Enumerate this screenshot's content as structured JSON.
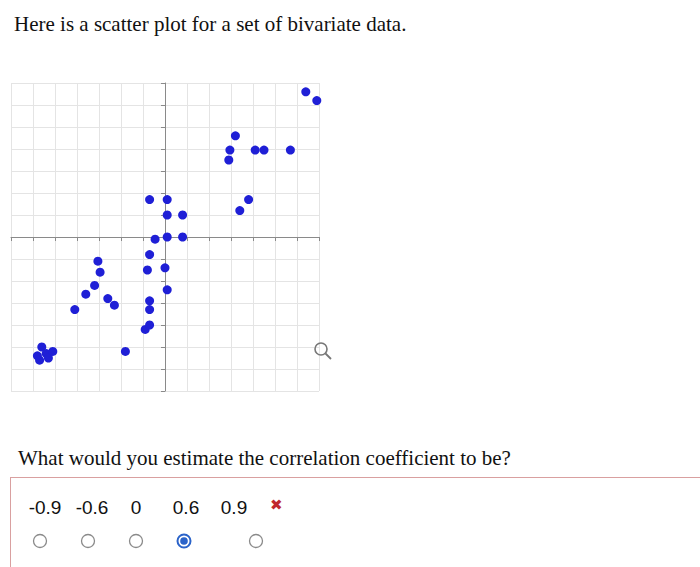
{
  "intro": "Here is a scatter plot for a set of bivariate data.",
  "chart_data": {
    "type": "scatter",
    "x": [
      -5.6,
      -5.4,
      -5.7,
      -5.3,
      -5.8,
      -5.1,
      -4.1,
      -3.6,
      -3.2,
      -2.95,
      -3.05,
      -2.6,
      -2.3,
      -1.8,
      -0.9,
      -0.7,
      -0.7,
      -0.7,
      -0.8,
      -0.7,
      -0.45,
      -0.7,
      0.1,
      0.1,
      0.1,
      0.8,
      0.8,
      0.0,
      0.1,
      3.2,
      2.95,
      2.9,
      3.4,
      3.8,
      4.1,
      4.5,
      5.7,
      6.4,
      6.9
    ],
    "y": [
      -5.0,
      -5.3,
      -5.6,
      -5.5,
      -5.4,
      -5.2,
      -3.3,
      -2.6,
      -2.2,
      -1.6,
      -1.1,
      -2.8,
      -3.1,
      -5.2,
      -4.2,
      -4.0,
      -3.3,
      -2.9,
      -1.5,
      -0.8,
      -0.1,
      1.7,
      1.7,
      1.0,
      0.0,
      1.0,
      0.0,
      -1.4,
      -2.4,
      4.6,
      3.95,
      3.5,
      1.2,
      1.7,
      3.95,
      3.95,
      3.95,
      6.6,
      6.2
    ],
    "color": "#1f1fd6",
    "marker": "circle",
    "xlim": [
      -7,
      7
    ],
    "ylim": [
      -7,
      7
    ],
    "xticks": [
      -7,
      -6,
      -5,
      -4,
      -3,
      -2,
      -1,
      0,
      1,
      2,
      3,
      4,
      5,
      6,
      7
    ],
    "yticks": [
      -7,
      -6,
      -5,
      -4,
      -3,
      -2,
      -1,
      0,
      1,
      2,
      3,
      4,
      5,
      6,
      7
    ],
    "grid": true,
    "tick_labels": false
  },
  "question": {
    "text": "What would you estimate the correlation coefficient to be?",
    "options": [
      "-0.9",
      "-0.6",
      "0",
      "0.6",
      "0.9"
    ],
    "selected": "0.6",
    "result_mark": "✖"
  }
}
